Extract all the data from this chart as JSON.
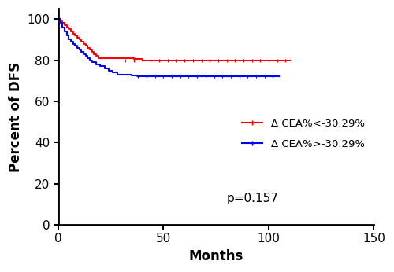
{
  "title": "",
  "xlabel": "Months",
  "ylabel": "Percent of DFS",
  "xlim": [
    0,
    150
  ],
  "ylim": [
    0,
    105
  ],
  "xticks": [
    0,
    50,
    100,
    150
  ],
  "yticks": [
    0,
    20,
    40,
    60,
    80,
    100
  ],
  "p_value_text": "p=0.157",
  "p_value_x": 80,
  "p_value_y": 10,
  "legend_label_red": "Δ CEA%<-30.29%",
  "legend_label_blue": "Δ CEA%>-30.29%",
  "red_color": "#FF0000",
  "blue_color": "#0000FF",
  "background_color": "#FFFFFF",
  "red_times": [
    0,
    1,
    2,
    3,
    4,
    5,
    6,
    7,
    8,
    9,
    10,
    11,
    12,
    13,
    14,
    15,
    16,
    17,
    18,
    19,
    20,
    22,
    24,
    26,
    28,
    30,
    32,
    34,
    36,
    38,
    40,
    42,
    44,
    46,
    48,
    50,
    55,
    60,
    65,
    70,
    75,
    80,
    85,
    90,
    95,
    100,
    105,
    110
  ],
  "red_surv": [
    100,
    99,
    98,
    97,
    96,
    95,
    94,
    93,
    92,
    91,
    90,
    89,
    88,
    87,
    86,
    85,
    84,
    83,
    82,
    81,
    81,
    81,
    81,
    81,
    81,
    81,
    81,
    81,
    80.5,
    80.5,
    80,
    80,
    80,
    80,
    80,
    80,
    80,
    80,
    80,
    80,
    80,
    80,
    80,
    80,
    80,
    80,
    80,
    80
  ],
  "blue_times": [
    0,
    1,
    2,
    3,
    4,
    5,
    6,
    7,
    8,
    9,
    10,
    11,
    12,
    13,
    14,
    15,
    16,
    18,
    20,
    22,
    24,
    26,
    28,
    30,
    32,
    34,
    35,
    36,
    38,
    40,
    42,
    44,
    46,
    48,
    50,
    55,
    60,
    65,
    70,
    75,
    80,
    85,
    90,
    95,
    100,
    105
  ],
  "blue_surv": [
    100,
    98,
    96,
    94,
    92,
    90,
    89,
    88,
    87,
    86,
    85,
    84,
    83,
    82,
    81,
    80,
    79,
    78,
    77,
    76,
    75,
    74,
    73,
    73,
    73,
    73,
    72.5,
    72.5,
    72,
    72,
    72,
    72,
    72,
    72,
    72,
    72,
    72,
    72,
    72,
    72,
    72,
    72,
    72,
    72,
    72,
    72
  ],
  "censor_red_x": [
    32,
    36,
    40,
    44,
    48,
    52,
    56,
    60,
    64,
    68,
    72,
    76,
    80,
    84,
    88,
    92,
    96,
    100,
    104,
    108
  ],
  "censor_red_y": [
    80,
    80,
    80,
    80,
    80,
    80,
    80,
    80,
    80,
    80,
    80,
    80,
    80,
    80,
    80,
    80,
    80,
    80,
    80,
    80
  ],
  "censor_blue_x": [
    38,
    42,
    46,
    50,
    54,
    58,
    62,
    66,
    70,
    74,
    78,
    82,
    86,
    90,
    94,
    98,
    102
  ],
  "censor_blue_y": [
    72,
    72,
    72,
    72,
    72,
    72,
    72,
    72,
    72,
    72,
    72,
    72,
    72,
    72,
    72,
    72,
    72
  ],
  "tick_fontsize": 11,
  "label_fontsize": 12,
  "legend_fontsize": 9.5
}
